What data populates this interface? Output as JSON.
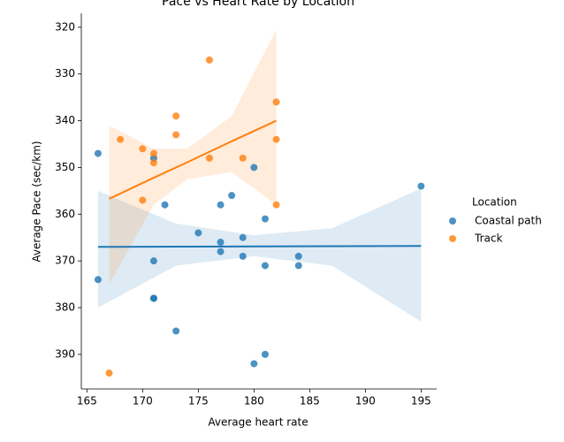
{
  "chart_data": {
    "type": "scatter",
    "title": "Pace vs Heart Rate by Location",
    "x_label": "Average heart rate",
    "y_label": "Average Pace (sec/km)",
    "legend_title": "Location",
    "legend_position": "right",
    "invert_y": true,
    "xlim": [
      164.5,
      196.4
    ],
    "ylim": [
      317,
      397.4
    ],
    "xticks": [
      165,
      170,
      175,
      180,
      185,
      190,
      195
    ],
    "yticks": [
      320,
      330,
      340,
      350,
      360,
      370,
      380,
      390
    ],
    "series": [
      {
        "name": "Coastal path",
        "color": "#1f77b4",
        "x": [
          166,
          166,
          171,
          171,
          171,
          171,
          172,
          173,
          175,
          177,
          177,
          177,
          178,
          179,
          179,
          180,
          180,
          181,
          181,
          181,
          184,
          184,
          195
        ],
        "values": [
          347,
          374,
          370,
          378,
          378,
          348,
          358,
          385,
          364,
          358,
          366,
          368,
          356,
          365,
          369,
          350,
          392,
          361,
          371,
          390,
          369,
          371,
          354
        ],
        "fit": {
          "x": [
            166,
            173,
            180,
            187,
            195
          ],
          "values": [
            367,
            366.95,
            366.9,
            366.85,
            366.8
          ],
          "ci_low": [
            355,
            362,
            364.5,
            363,
            354.5
          ],
          "ci_high": [
            380,
            371,
            369,
            371,
            383
          ]
        }
      },
      {
        "name": "Track",
        "color": "#ff7f0e",
        "x": [
          167,
          168,
          170,
          170,
          171,
          171,
          173,
          173,
          176,
          176,
          179,
          182,
          182,
          182
        ],
        "values": [
          394,
          344,
          346,
          357,
          347,
          349,
          339,
          343,
          327,
          348,
          348,
          336,
          344,
          358
        ],
        "fit": {
          "x": [
            167,
            171,
            174,
            178,
            182
          ],
          "values": [
            356.7,
            352.2,
            348.9,
            344.4,
            340
          ],
          "ci_low": [
            341,
            346,
            346,
            339,
            320.5
          ],
          "ci_high": [
            375,
            358,
            352.5,
            351,
            358
          ]
        }
      }
    ]
  }
}
